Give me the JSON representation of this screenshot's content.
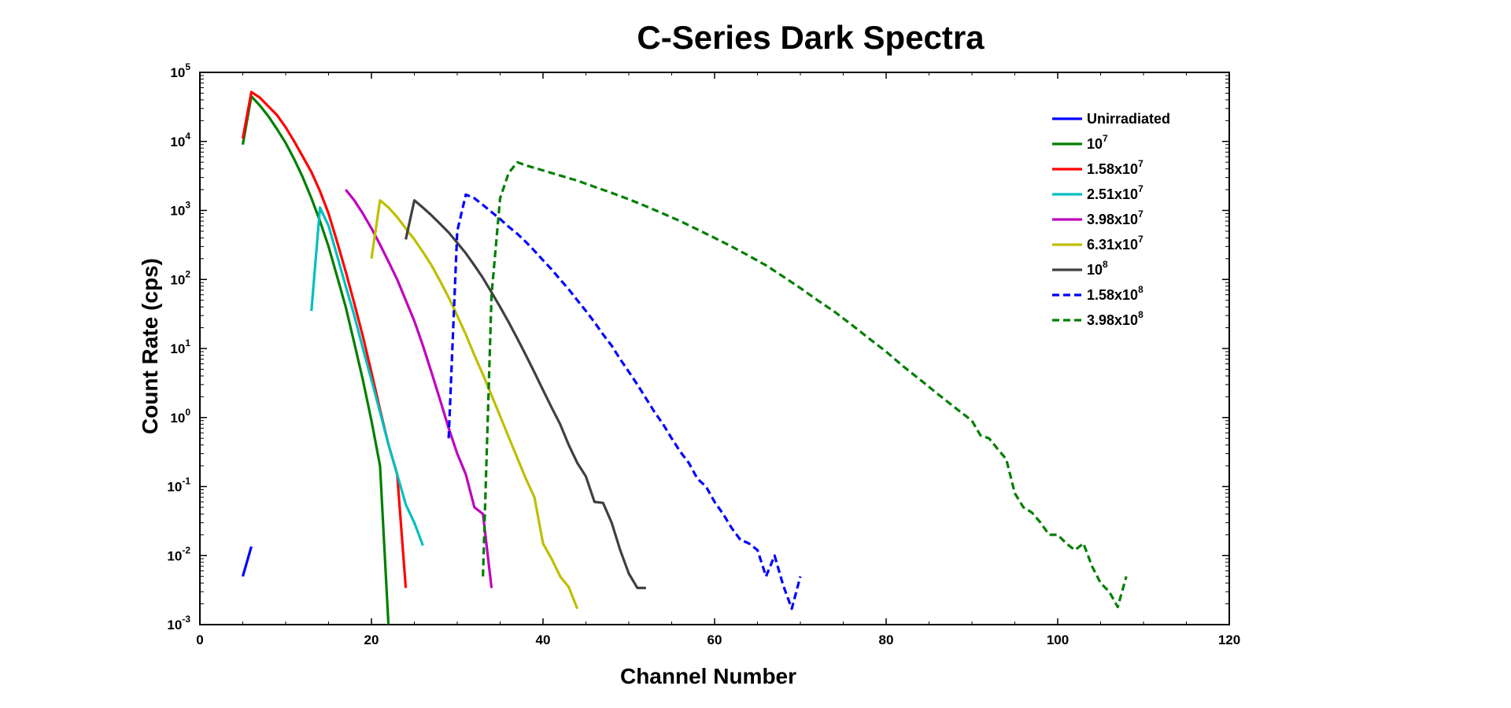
{
  "chart_data": {
    "type": "line",
    "title": "C-Series Dark Spectra",
    "xlabel": "Channel Number",
    "ylabel": "Count Rate (cps)",
    "xlim": [
      0,
      120
    ],
    "ylim": [
      0.001,
      100000
    ],
    "yscale": "log",
    "grid": false,
    "legend_position": "top-right",
    "x_ticks": [
      0,
      20,
      40,
      60,
      80,
      100,
      120
    ],
    "y_ticks": [
      {
        "value": 0.001,
        "base": "10",
        "exp": "-3"
      },
      {
        "value": 0.01,
        "base": "10",
        "exp": "-2"
      },
      {
        "value": 0.1,
        "base": "10",
        "exp": "-1"
      },
      {
        "value": 1,
        "base": "10",
        "exp": "0"
      },
      {
        "value": 10,
        "base": "10",
        "exp": "1"
      },
      {
        "value": 100,
        "base": "10",
        "exp": "2"
      },
      {
        "value": 1000,
        "base": "10",
        "exp": "3"
      },
      {
        "value": 10000,
        "base": "10",
        "exp": "4"
      },
      {
        "value": 100000,
        "base": "10",
        "exp": "5"
      }
    ],
    "series": [
      {
        "name": "Unirradiated",
        "mantissa": "Unirradiated",
        "exp": "",
        "color": "#0000ff",
        "dash": false,
        "points": [
          [
            5,
            0.005
          ],
          [
            6,
            0.0135
          ]
        ]
      },
      {
        "name": "10^7",
        "mantissa": "10",
        "exp": "7",
        "color": "#007f00",
        "dash": false,
        "points": [
          [
            5,
            9000
          ],
          [
            6,
            45000
          ],
          [
            7,
            33000
          ],
          [
            8,
            23000
          ],
          [
            9,
            15000
          ],
          [
            10,
            9500
          ],
          [
            11,
            5500
          ],
          [
            12,
            3000
          ],
          [
            13,
            1500
          ],
          [
            14,
            700
          ],
          [
            15,
            300
          ],
          [
            16,
            110
          ],
          [
            17,
            40
          ],
          [
            18,
            12
          ],
          [
            19,
            3.5
          ],
          [
            20,
            0.9
          ],
          [
            21,
            0.2
          ],
          [
            22,
            0.0009
          ]
        ]
      },
      {
        "name": "1.58x10^7",
        "mantissa": "1.58x10",
        "exp": "7",
        "color": "#ff0000",
        "dash": false,
        "points": [
          [
            5,
            11000
          ],
          [
            6,
            52000
          ],
          [
            7,
            43000
          ],
          [
            8,
            32000
          ],
          [
            9,
            24000
          ],
          [
            10,
            16000
          ],
          [
            11,
            10000
          ],
          [
            12,
            6000
          ],
          [
            13,
            3600
          ],
          [
            14,
            1900
          ],
          [
            15,
            900
          ],
          [
            16,
            350
          ],
          [
            17,
            130
          ],
          [
            18,
            45
          ],
          [
            19,
            15
          ],
          [
            20,
            4.5
          ],
          [
            21,
            1.3
          ],
          [
            22,
            0.4
          ],
          [
            23,
            0.15
          ],
          [
            24,
            0.0034
          ]
        ]
      },
      {
        "name": "2.51x10^7",
        "mantissa": "2.51x10",
        "exp": "7",
        "color": "#00bfbf",
        "dash": false,
        "points": [
          [
            13,
            35
          ],
          [
            14,
            1100
          ],
          [
            15,
            600
          ],
          [
            16,
            220
          ],
          [
            17,
            80
          ],
          [
            18,
            30
          ],
          [
            19,
            10
          ],
          [
            20,
            3.5
          ],
          [
            21,
            1.2
          ],
          [
            22,
            0.4
          ],
          [
            23,
            0.15
          ],
          [
            24,
            0.055
          ],
          [
            25,
            0.03
          ],
          [
            26,
            0.014
          ]
        ]
      },
      {
        "name": "3.98x10^7",
        "mantissa": "3.98x10",
        "exp": "7",
        "color": "#bf00bf",
        "dash": false,
        "points": [
          [
            17,
            2000
          ],
          [
            18,
            1400
          ],
          [
            19,
            900
          ],
          [
            20,
            550
          ],
          [
            21,
            320
          ],
          [
            22,
            180
          ],
          [
            23,
            100
          ],
          [
            24,
            50
          ],
          [
            25,
            25
          ],
          [
            26,
            11
          ],
          [
            27,
            4.5
          ],
          [
            28,
            1.8
          ],
          [
            29,
            0.7
          ],
          [
            30,
            0.3
          ],
          [
            31,
            0.15
          ],
          [
            32,
            0.05
          ],
          [
            33,
            0.04
          ],
          [
            34,
            0.0034
          ]
        ]
      },
      {
        "name": "6.31x10^7",
        "mantissa": "6.31x10",
        "exp": "7",
        "color": "#bfbf00",
        "dash": false,
        "points": [
          [
            20,
            200
          ],
          [
            21,
            1400
          ],
          [
            22,
            1100
          ],
          [
            23,
            800
          ],
          [
            24,
            550
          ],
          [
            25,
            380
          ],
          [
            26,
            250
          ],
          [
            27,
            160
          ],
          [
            28,
            95
          ],
          [
            29,
            55
          ],
          [
            30,
            30
          ],
          [
            31,
            16
          ],
          [
            32,
            8
          ],
          [
            33,
            4.2
          ],
          [
            34,
            2.1
          ],
          [
            35,
            1.05
          ],
          [
            36,
            0.52
          ],
          [
            37,
            0.26
          ],
          [
            38,
            0.13
          ],
          [
            39,
            0.07
          ],
          [
            40,
            0.015
          ],
          [
            41,
            0.009
          ],
          [
            42,
            0.005
          ],
          [
            43,
            0.0035
          ],
          [
            44,
            0.0017
          ]
        ]
      },
      {
        "name": "10^8",
        "mantissa": "10",
        "exp": "8",
        "color": "#404040",
        "dash": false,
        "points": [
          [
            24,
            380
          ],
          [
            25,
            1400
          ],
          [
            26,
            1100
          ],
          [
            27,
            850
          ],
          [
            28,
            640
          ],
          [
            29,
            480
          ],
          [
            30,
            340
          ],
          [
            31,
            240
          ],
          [
            32,
            160
          ],
          [
            33,
            105
          ],
          [
            34,
            65
          ],
          [
            35,
            40
          ],
          [
            36,
            24
          ],
          [
            37,
            14
          ],
          [
            38,
            8
          ],
          [
            39,
            4.5
          ],
          [
            40,
            2.5
          ],
          [
            41,
            1.4
          ],
          [
            42,
            0.8
          ],
          [
            43,
            0.4
          ],
          [
            44,
            0.22
          ],
          [
            45,
            0.14
          ],
          [
            46,
            0.06
          ],
          [
            47,
            0.058
          ],
          [
            48,
            0.03
          ],
          [
            49,
            0.012
          ],
          [
            50,
            0.0055
          ],
          [
            51,
            0.0034
          ],
          [
            52,
            0.0034
          ]
        ]
      },
      {
        "name": "1.58x10^8",
        "mantissa": "1.58x10",
        "exp": "8",
        "color": "#0000ff",
        "dash": true,
        "points": [
          [
            29,
            0.5
          ],
          [
            30,
            500
          ],
          [
            31,
            1700
          ],
          [
            32,
            1500
          ],
          [
            33,
            1200
          ],
          [
            34,
            950
          ],
          [
            35,
            750
          ],
          [
            36,
            580
          ],
          [
            37,
            460
          ],
          [
            38,
            350
          ],
          [
            39,
            260
          ],
          [
            40,
            190
          ],
          [
            41,
            140
          ],
          [
            42,
            100
          ],
          [
            43,
            72
          ],
          [
            44,
            50
          ],
          [
            45,
            35
          ],
          [
            46,
            24
          ],
          [
            47,
            16
          ],
          [
            48,
            11
          ],
          [
            49,
            7
          ],
          [
            50,
            4.6
          ],
          [
            51,
            3
          ],
          [
            52,
            1.9
          ],
          [
            53,
            1.2
          ],
          [
            54,
            0.8
          ],
          [
            55,
            0.5
          ],
          [
            56,
            0.32
          ],
          [
            57,
            0.22
          ],
          [
            58,
            0.13
          ],
          [
            59,
            0.1
          ],
          [
            60,
            0.06
          ],
          [
            61,
            0.04
          ],
          [
            62,
            0.025
          ],
          [
            63,
            0.017
          ],
          [
            64,
            0.015
          ],
          [
            65,
            0.012
          ],
          [
            66,
            0.005
          ],
          [
            67,
            0.01
          ],
          [
            68,
            0.0037
          ],
          [
            69,
            0.0017
          ],
          [
            70,
            0.005
          ]
        ]
      },
      {
        "name": "3.98x10^8",
        "mantissa": "3.98x10",
        "exp": "8",
        "color": "#007f00",
        "dash": true,
        "points": [
          [
            33,
            0.005
          ],
          [
            34,
            60
          ],
          [
            35,
            1500
          ],
          [
            36,
            3500
          ],
          [
            37,
            5000
          ],
          [
            38,
            4500
          ],
          [
            40,
            3800
          ],
          [
            42,
            3200
          ],
          [
            44,
            2700
          ],
          [
            46,
            2200
          ],
          [
            48,
            1800
          ],
          [
            50,
            1450
          ],
          [
            52,
            1150
          ],
          [
            54,
            900
          ],
          [
            56,
            700
          ],
          [
            58,
            530
          ],
          [
            60,
            400
          ],
          [
            62,
            300
          ],
          [
            64,
            220
          ],
          [
            66,
            160
          ],
          [
            68,
            110
          ],
          [
            70,
            75
          ],
          [
            72,
            50
          ],
          [
            74,
            34
          ],
          [
            76,
            22
          ],
          [
            78,
            14
          ],
          [
            80,
            9
          ],
          [
            82,
            5.5
          ],
          [
            84,
            3.5
          ],
          [
            86,
            2.2
          ],
          [
            88,
            1.4
          ],
          [
            90,
            0.9
          ],
          [
            91,
            0.55
          ],
          [
            92,
            0.5
          ],
          [
            93,
            0.35
          ],
          [
            94,
            0.25
          ],
          [
            95,
            0.08
          ],
          [
            96,
            0.05
          ],
          [
            97,
            0.042
          ],
          [
            98,
            0.03
          ],
          [
            99,
            0.02
          ],
          [
            100,
            0.02
          ],
          [
            101,
            0.015
          ],
          [
            102,
            0.012
          ],
          [
            103,
            0.015
          ],
          [
            104,
            0.007
          ],
          [
            105,
            0.004
          ],
          [
            106,
            0.003
          ],
          [
            107,
            0.0018
          ],
          [
            108,
            0.005
          ]
        ]
      }
    ]
  }
}
